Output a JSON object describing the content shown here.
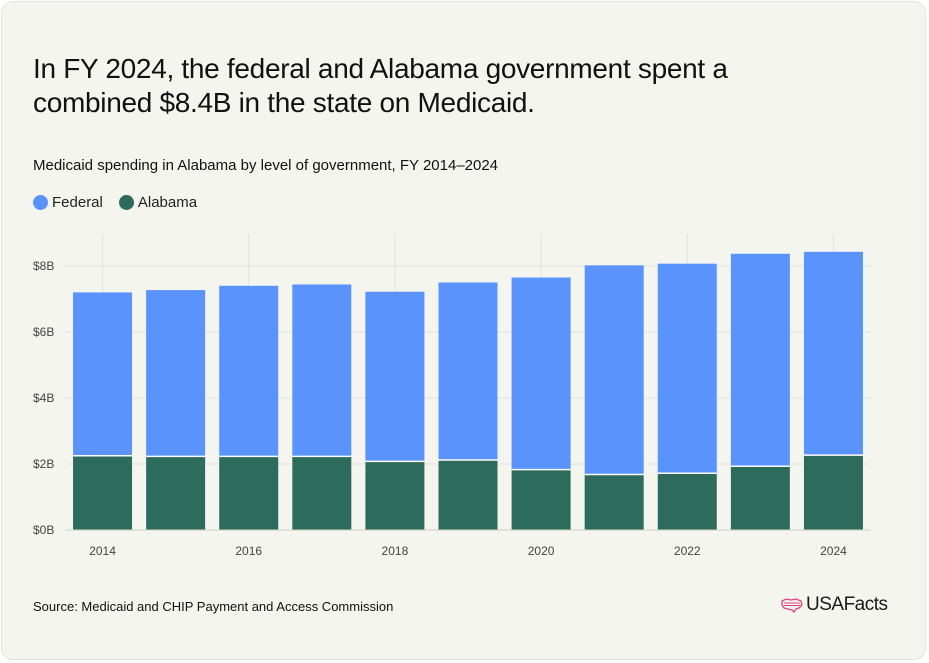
{
  "headline": "In FY 2024, the federal and Alabama government spent a combined $8.4B in the state on Medicaid.",
  "subtitle": "Medicaid spending in Alabama by level of government, FY 2014–2024",
  "source": "Source: Medicaid and CHIP Payment and Access Commission",
  "logo_text": "USAFacts",
  "colors": {
    "federal": "#5993fb",
    "alabama": "#2d6b5c",
    "grid": "#e2e2dc",
    "background": "#f5f5f0"
  },
  "chart_data": {
    "type": "bar",
    "stacked": true,
    "title": "Medicaid spending in Alabama by level of government, FY 2014–2024",
    "xlabel": "",
    "ylabel": "",
    "categories": [
      "2014",
      "2015",
      "2016",
      "2017",
      "2018",
      "2019",
      "2020",
      "2021",
      "2022",
      "2023",
      "2024"
    ],
    "x_tick_labels": [
      "2014",
      "2016",
      "2018",
      "2020",
      "2022",
      "2024"
    ],
    "y_tick_values": [
      0,
      2,
      4,
      6,
      8
    ],
    "y_tick_labels": [
      "$0B",
      "$2B",
      "$4B",
      "$6B",
      "$8B"
    ],
    "ylim": [
      0,
      9
    ],
    "units": "billions of dollars",
    "legend_position": "top-left",
    "grid": true,
    "series": [
      {
        "name": "Alabama",
        "color": "#2d6b5c",
        "values": [
          2.25,
          2.23,
          2.23,
          2.23,
          2.08,
          2.12,
          1.83,
          1.68,
          1.72,
          1.93,
          2.27
        ]
      },
      {
        "name": "Federal",
        "color": "#5993fb",
        "values": [
          4.95,
          5.04,
          5.17,
          5.21,
          5.14,
          5.38,
          5.82,
          6.34,
          6.35,
          6.44,
          6.16
        ]
      }
    ],
    "legend_order": [
      "Federal",
      "Alabama"
    ]
  }
}
